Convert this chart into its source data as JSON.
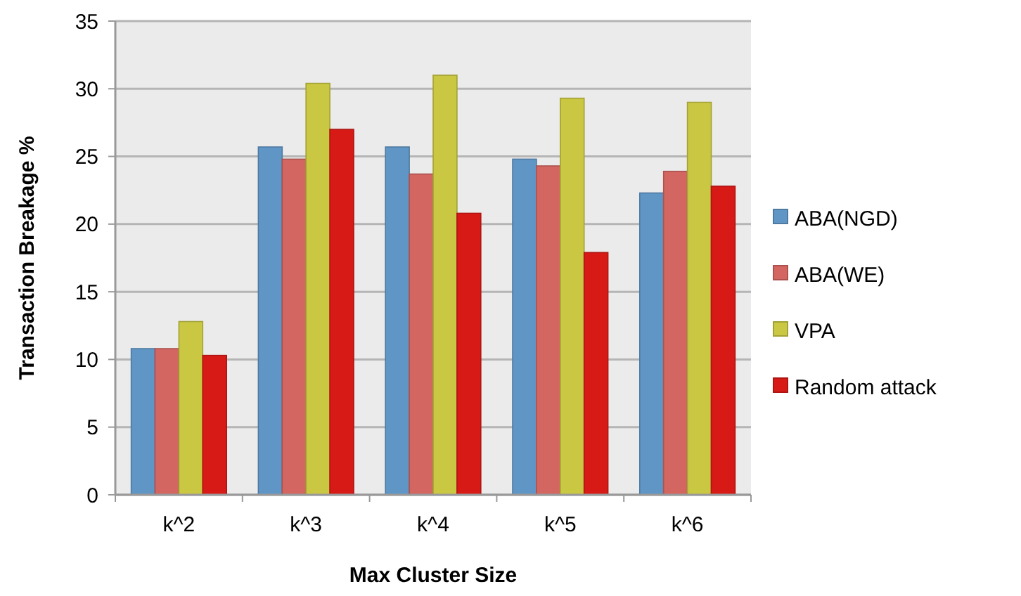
{
  "chart_data": {
    "type": "bar",
    "xlabel": "Max Cluster Size",
    "ylabel": "Transaction Breakage %",
    "categories": [
      "k^2",
      "k^3",
      "k^4",
      "k^5",
      "k^6"
    ],
    "series": [
      {
        "name": "ABA(NGD)",
        "color": "#6096c6",
        "values": [
          10.8,
          25.7,
          25.7,
          24.8,
          22.3
        ]
      },
      {
        "name": "ABA(WE)",
        "color": "#d46662",
        "values": [
          10.8,
          24.8,
          23.7,
          24.3,
          23.9
        ]
      },
      {
        "name": "VPA",
        "color": "#cac843",
        "values": [
          12.8,
          30.4,
          31.0,
          29.3,
          29.0
        ]
      },
      {
        "name": "Random attack",
        "color": "#d81a16",
        "values": [
          10.3,
          27.0,
          20.8,
          17.9,
          22.8
        ]
      }
    ],
    "ylim": [
      0,
      35
    ],
    "yticks": [
      0,
      5,
      10,
      15,
      20,
      25,
      30,
      35
    ],
    "grid": "y",
    "legend": "right"
  }
}
